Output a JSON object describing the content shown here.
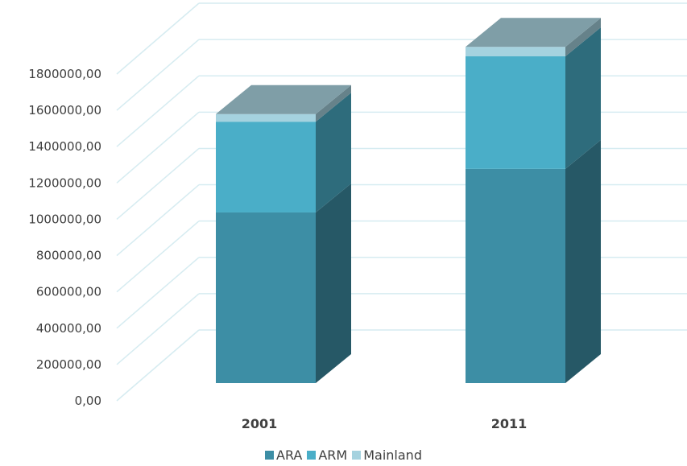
{
  "chart_data": {
    "type": "bar",
    "stacked": true,
    "three_d": true,
    "title": "",
    "xlabel": "",
    "ylabel": "",
    "categories": [
      "2001",
      "2011"
    ],
    "series": [
      {
        "name": "ARA",
        "color": "#3d8ea5",
        "values": [
          940000,
          1180000
        ]
      },
      {
        "name": "ARM",
        "color": "#4aaec8",
        "values": [
          500000,
          620000
        ]
      },
      {
        "name": "Mainland",
        "color": "#a5d2df",
        "values": [
          42000,
          52000
        ]
      }
    ],
    "ylim": [
      0,
      1800000
    ],
    "y_ticks": [
      "0,00",
      "200000,00",
      "400000,00",
      "600000,00",
      "800000,00",
      "1000000,00",
      "1200000,00",
      "1400000,00",
      "1600000,00",
      "1800000,00"
    ],
    "grid": true,
    "legend_position": "bottom"
  }
}
